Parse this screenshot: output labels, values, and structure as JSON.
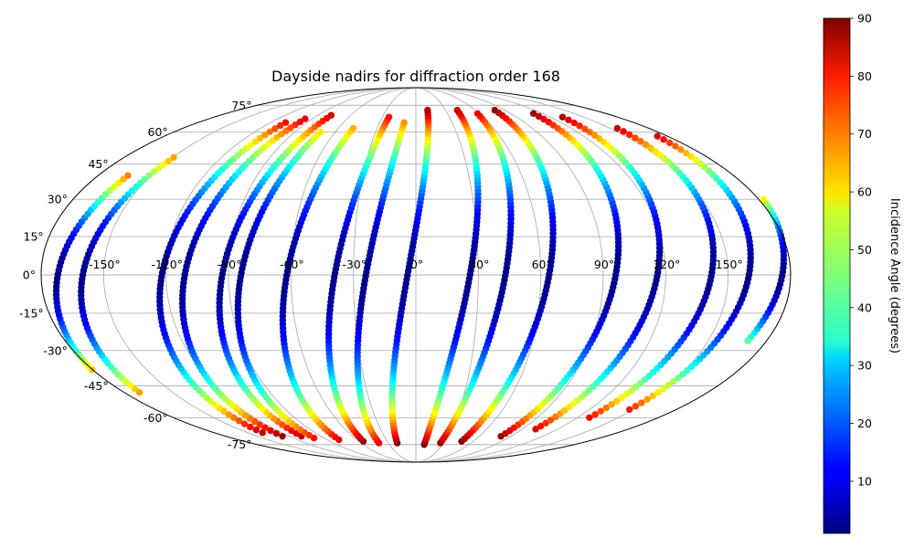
{
  "chart_data": {
    "type": "scatter",
    "projection": "mollweide",
    "title": "Dayside nadirs for diffraction order 168",
    "colorbar": {
      "label": "Incidence Angle (degrees)",
      "range": [
        1,
        90
      ],
      "ticks": [
        10,
        20,
        30,
        40,
        50,
        60,
        70,
        80,
        90
      ],
      "colormap": "jet",
      "placement": "right"
    },
    "grid": true,
    "longitude_ticks": [
      "-150°",
      "-120°",
      "-90°",
      "-60°",
      "-30°",
      "0°",
      "30°",
      "60°",
      "90°",
      "120°",
      "150°"
    ],
    "latitude_ticks": [
      "75°",
      "60°",
      "45°",
      "30°",
      "15°",
      "0°",
      "-15°",
      "-30°",
      "-45°",
      "-60°",
      "-75°"
    ],
    "longitude_values": [
      -150,
      -120,
      -90,
      -60,
      -30,
      0,
      30,
      60,
      90,
      120,
      150
    ],
    "latitude_values": [
      75,
      60,
      45,
      30,
      15,
      0,
      -15,
      -30,
      -45,
      -60,
      -75
    ],
    "orbits": [
      {
        "anchor": [
          -172,
          0
        ],
        "lat_range": [
          -38,
          40
        ],
        "max_incidence": 68
      },
      {
        "anchor": [
          -160,
          0
        ],
        "lat_range": [
          -48,
          48
        ],
        "max_incidence": 65
      },
      {
        "anchor": [
          -122,
          0
        ],
        "lat_range": [
          -68,
          65
        ],
        "max_incidence": 85
      },
      {
        "anchor": [
          -111,
          0
        ],
        "lat_range": [
          -70,
          67
        ],
        "max_incidence": 88
      },
      {
        "anchor": [
          -93,
          0
        ],
        "lat_range": [
          -70,
          69
        ],
        "max_incidence": 85
      },
      {
        "anchor": [
          -84,
          0
        ],
        "lat_range": [
          -71,
          60
        ],
        "max_incidence": 78
      },
      {
        "anchor": [
          -62,
          0
        ],
        "lat_range": [
          -72,
          62
        ],
        "max_incidence": 82
      },
      {
        "anchor": [
          -39,
          0
        ],
        "lat_range": [
          -73,
          68
        ],
        "max_incidence": 88
      },
      {
        "anchor": [
          -24,
          0
        ],
        "lat_range": [
          -74,
          65
        ],
        "max_incidence": 82
      },
      {
        "anchor": [
          -4,
          0
        ],
        "lat_range": [
          -74,
          72
        ],
        "max_incidence": 90
      },
      {
        "anchor": [
          26,
          0
        ],
        "lat_range": [
          -75,
          72
        ],
        "max_incidence": 90
      },
      {
        "anchor": [
          43,
          0
        ],
        "lat_range": [
          -74,
          70
        ],
        "max_incidence": 88
      },
      {
        "anchor": [
          64,
          0
        ],
        "lat_range": [
          -73,
          72
        ],
        "max_incidence": 90
      },
      {
        "anchor": [
          96,
          0
        ],
        "lat_range": [
          -70,
          70
        ],
        "max_incidence": 88
      },
      {
        "anchor": [
          116,
          0
        ],
        "lat_range": [
          -66,
          68
        ],
        "max_incidence": 86
      },
      {
        "anchor": [
          142,
          0
        ],
        "lat_range": [
          -60,
          62
        ],
        "max_incidence": 84
      },
      {
        "anchor": [
          160,
          0
        ],
        "lat_range": [
          -56,
          58
        ],
        "max_incidence": 82
      },
      {
        "anchor": [
          176,
          0
        ],
        "lat_range": [
          -26,
          30
        ],
        "max_incidence": 55
      }
    ]
  }
}
